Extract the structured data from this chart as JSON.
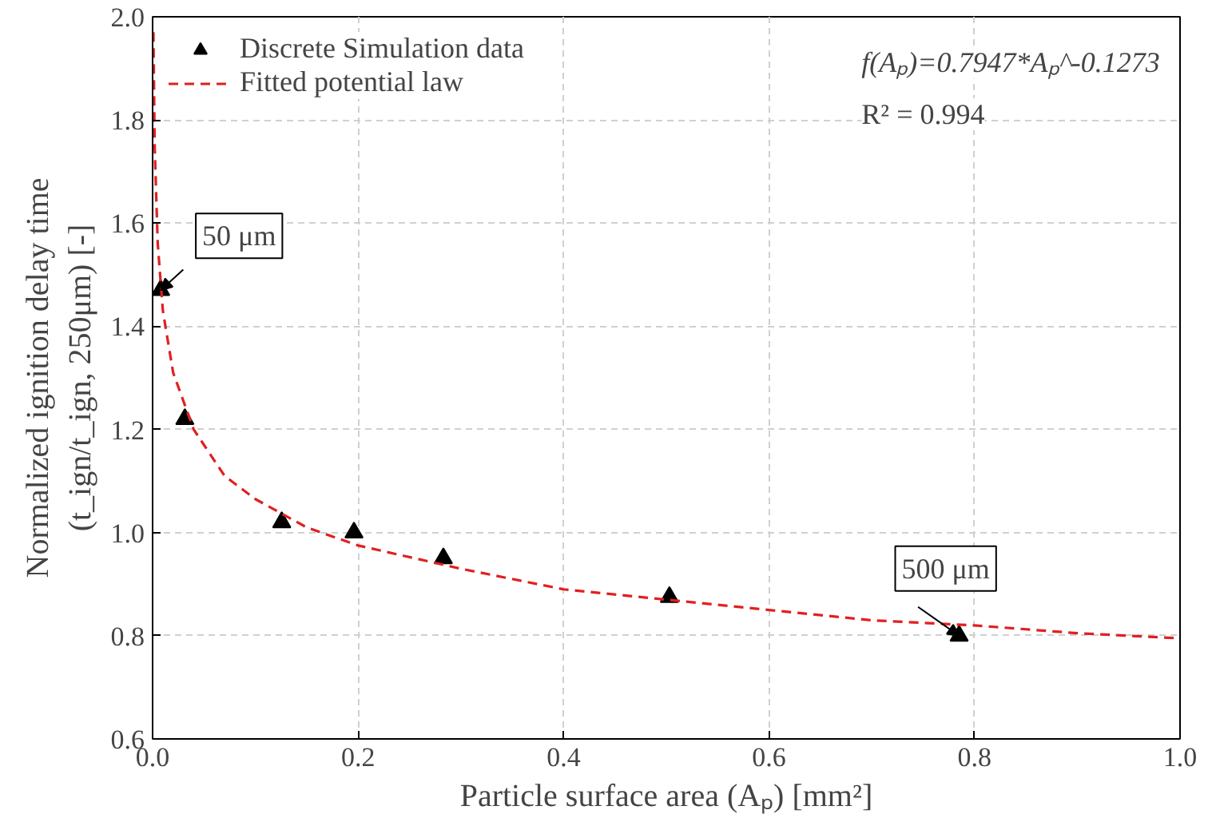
{
  "chart_data": {
    "type": "scatter",
    "xlabel": "Particle surface area (Aₚ) [mm²]",
    "ylabel": "Normalized ignition delay time\n(t_ign/t_ign, 250μm) [-]",
    "xlim": [
      0,
      1.0
    ],
    "ylim": [
      0.6,
      2.0
    ],
    "xticks": [
      {
        "value": 0,
        "label": "0.0"
      },
      0.2,
      0.4,
      0.6,
      0.8,
      {
        "value": 1,
        "label": "1.0"
      }
    ],
    "yticks": [
      0.6,
      0.8,
      {
        "value": 1,
        "label": "1.0"
      },
      1.2,
      1.4,
      1.6,
      1.8,
      {
        "value": 2,
        "label": "2.0"
      }
    ],
    "grid": true,
    "legend": "top left",
    "series": [
      {
        "name": "Discrete Simulation data",
        "marker": "triangle",
        "color": "#000000",
        "x": [
          0.00785,
          0.0314,
          0.1257,
          0.196,
          0.283,
          0.503,
          0.785
        ],
        "values": [
          1.47,
          1.22,
          1.02,
          1.0,
          0.95,
          0.875,
          0.8
        ]
      },
      {
        "name": "Fitted potential law",
        "type": "line",
        "line_style": "dashed",
        "color": "#e02020",
        "x": [
          0.0008,
          0.002,
          0.005,
          0.01,
          0.02,
          0.04,
          0.07,
          0.1,
          0.15,
          0.2,
          0.3,
          0.4,
          0.5,
          0.6,
          0.7,
          0.8,
          0.9,
          1.0
        ],
        "values": [
          1.97,
          1.75,
          1.56,
          1.43,
          1.31,
          1.2,
          1.11,
          1.065,
          1.01,
          0.975,
          0.93,
          0.89,
          0.87,
          0.85,
          0.83,
          0.82,
          0.805,
          0.795
        ]
      }
    ],
    "annotations": [
      {
        "text": "50 μm",
        "x": 0.00785,
        "y": 1.47
      },
      {
        "text": "500 μm",
        "x": 0.785,
        "y": 0.8
      },
      "f(Aₚ)=0.7947*Aₚ^-0.1273",
      "R² = 0.994"
    ]
  }
}
